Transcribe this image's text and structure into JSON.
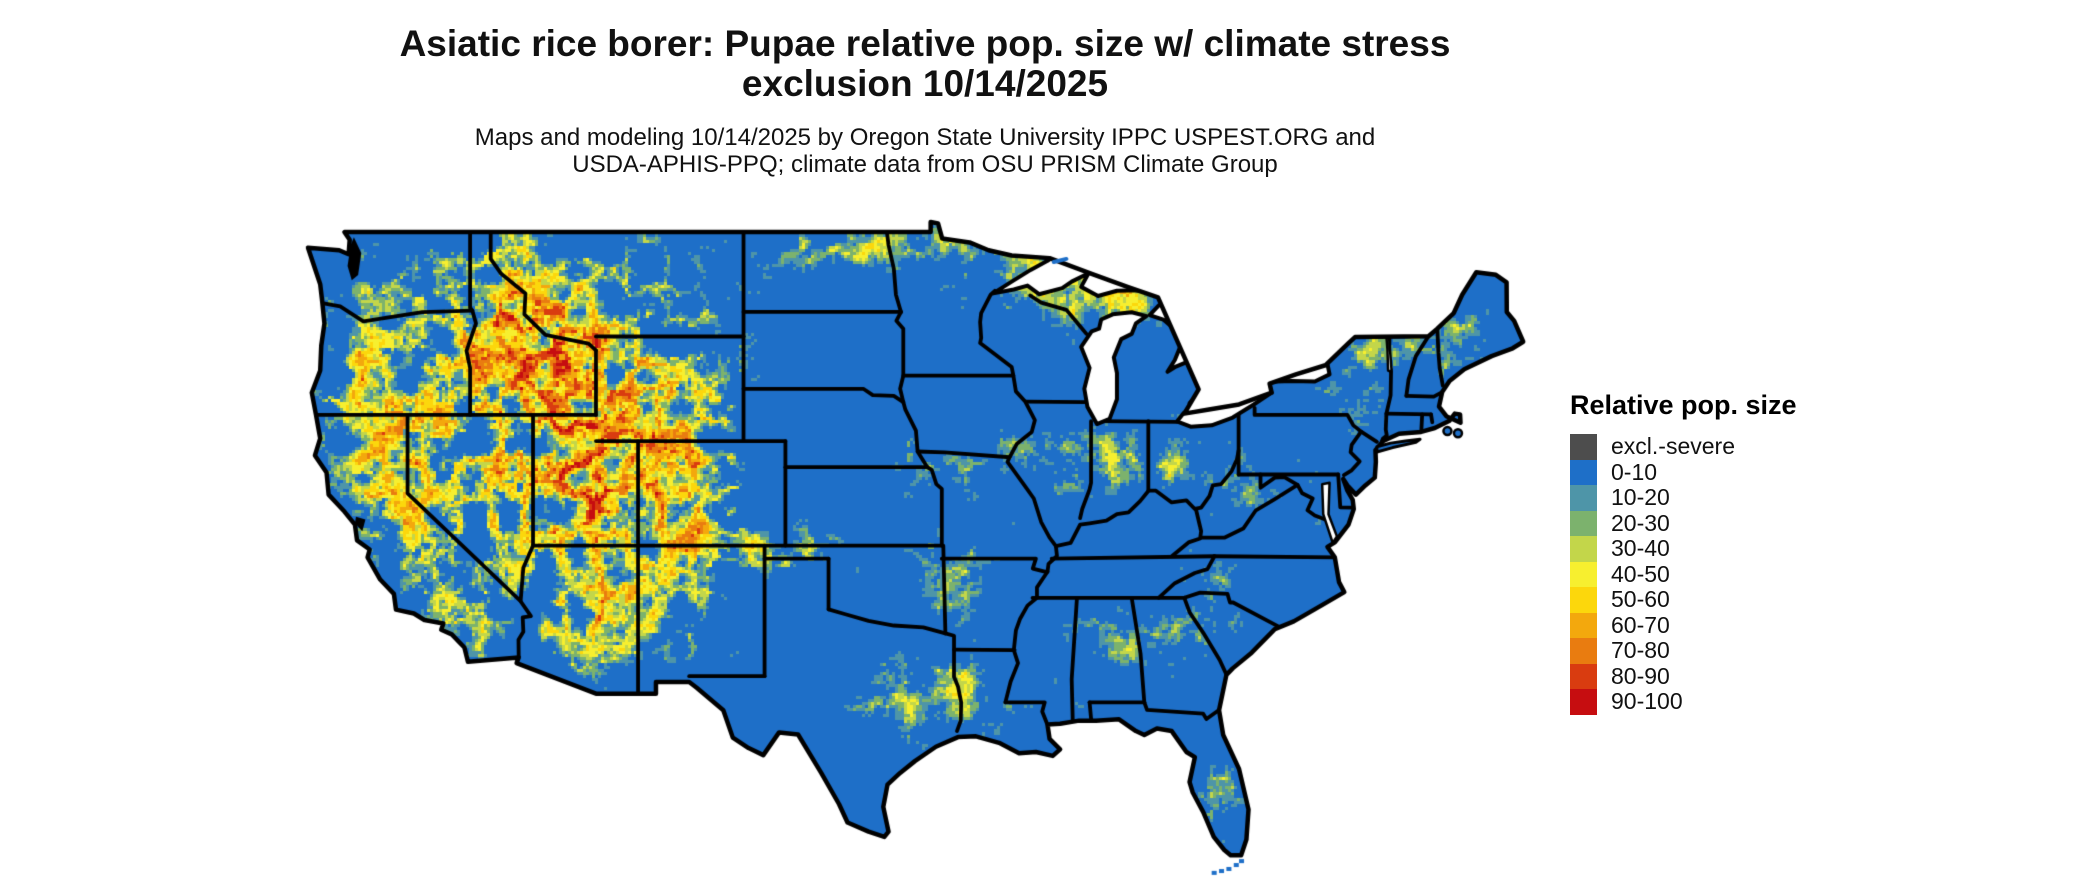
{
  "figure": {
    "title_line1": "Asiatic rice borer: Pupae relative pop. size w/ climate stress",
    "title_line2": "exclusion 10/14/2025",
    "subtitle_line1": "Maps and modeling 10/14/2025 by Oregon State University IPPC USPEST.ORG and",
    "subtitle_line2": "USDA-APHIS-PPQ; climate data from OSU PRISM Climate Group"
  },
  "legend": {
    "title": "Relative pop. size",
    "items": [
      {
        "label": "excl.-severe",
        "color": "#4d4d4d"
      },
      {
        "label": "0-10",
        "color": "#1e6fc8"
      },
      {
        "label": "10-20",
        "color": "#4e95a8"
      },
      {
        "label": "20-30",
        "color": "#7cb26d"
      },
      {
        "label": "30-40",
        "color": "#c3d64a"
      },
      {
        "label": "40-50",
        "color": "#f7ef2f"
      },
      {
        "label": "50-60",
        "color": "#fcd70c"
      },
      {
        "label": "60-70",
        "color": "#f3a80d"
      },
      {
        "label": "70-80",
        "color": "#e97c10"
      },
      {
        "label": "80-90",
        "color": "#d93c10"
      },
      {
        "label": "90-100",
        "color": "#c60d10"
      }
    ]
  },
  "map": {
    "region": "Continental United States",
    "water_color": "#ffffff",
    "border_color": "#000000",
    "dominant_category": "0-10"
  }
}
